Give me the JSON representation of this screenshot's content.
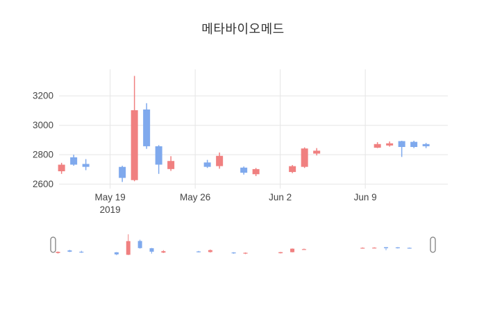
{
  "title": "메타바이오메드",
  "chart_data": {
    "type": "candlestick",
    "title": "메타바이오메드",
    "increasing_color": "#F08080",
    "decreasing_color": "#7FA9ED",
    "grid_color": "#e5e5e5",
    "tick_color": "#444444",
    "background": "#ffffff",
    "legend": "none",
    "grid": true,
    "y_ticks": [
      2600,
      2800,
      3000,
      3200
    ],
    "y_range": [
      2570,
      3380
    ],
    "x_range": [
      "2019-05-14T19:00:00Z",
      "2019-06-15T19:00:00Z"
    ],
    "x_ticks": [
      {
        "date": "2019-05-19",
        "label": "May 19",
        "sublabel": "2019"
      },
      {
        "date": "2019-05-26",
        "label": "May 26",
        "sublabel": ""
      },
      {
        "date": "2019-06-02",
        "label": "Jun 2",
        "sublabel": ""
      },
      {
        "date": "2019-06-09",
        "label": "Jun 9",
        "sublabel": ""
      }
    ],
    "rangeslider": {
      "enabled": true
    },
    "candles": [
      {
        "date": "2019-05-15",
        "open": 2690,
        "high": 2745,
        "low": 2670,
        "close": 2730
      },
      {
        "date": "2019-05-16",
        "open": 2780,
        "high": 2800,
        "low": 2725,
        "close": 2735
      },
      {
        "date": "2019-05-17",
        "open": 2735,
        "high": 2770,
        "low": 2695,
        "close": 2720
      },
      {
        "date": "2019-05-20",
        "open": 2715,
        "high": 2725,
        "low": 2615,
        "close": 2645
      },
      {
        "date": "2019-05-21",
        "open": 2630,
        "high": 3335,
        "low": 2620,
        "close": 3100
      },
      {
        "date": "2019-05-22",
        "open": 3105,
        "high": 3150,
        "low": 2840,
        "close": 2860
      },
      {
        "date": "2019-05-23",
        "open": 2855,
        "high": 2865,
        "low": 2670,
        "close": 2735
      },
      {
        "date": "2019-05-24",
        "open": 2705,
        "high": 2790,
        "low": 2690,
        "close": 2755
      },
      {
        "date": "2019-05-27",
        "open": 2745,
        "high": 2765,
        "low": 2710,
        "close": 2720
      },
      {
        "date": "2019-05-28",
        "open": 2725,
        "high": 2815,
        "low": 2705,
        "close": 2790
      },
      {
        "date": "2019-05-30",
        "open": 2710,
        "high": 2720,
        "low": 2665,
        "close": 2680
      },
      {
        "date": "2019-05-31",
        "open": 2670,
        "high": 2710,
        "low": 2655,
        "close": 2700
      },
      {
        "date": "2019-06-03",
        "open": 2685,
        "high": 2730,
        "low": 2675,
        "close": 2720
      },
      {
        "date": "2019-06-04",
        "open": 2720,
        "high": 2850,
        "low": 2710,
        "close": 2840
      },
      {
        "date": "2019-06-05",
        "open": 2810,
        "high": 2845,
        "low": 2795,
        "close": 2825
      },
      {
        "date": "2019-06-10",
        "open": 2850,
        "high": 2885,
        "low": 2845,
        "close": 2870
      },
      {
        "date": "2019-06-11",
        "open": 2865,
        "high": 2890,
        "low": 2855,
        "close": 2875
      },
      {
        "date": "2019-06-12",
        "open": 2890,
        "high": 2895,
        "low": 2785,
        "close": 2855
      },
      {
        "date": "2019-06-13",
        "open": 2885,
        "high": 2895,
        "low": 2845,
        "close": 2855
      },
      {
        "date": "2019-06-14",
        "open": 2870,
        "high": 2880,
        "low": 2845,
        "close": 2860
      }
    ]
  }
}
